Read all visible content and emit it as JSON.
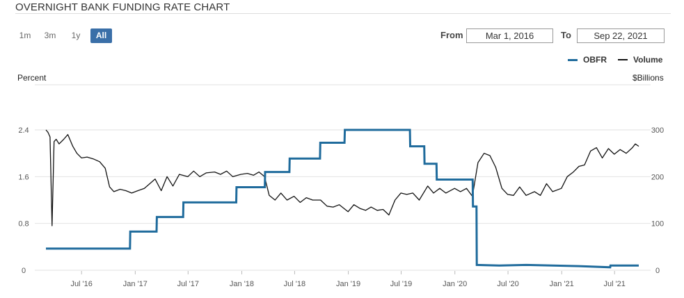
{
  "page": {
    "title": "OVERNIGHT BANK FUNDING RATE CHART",
    "range_buttons": [
      {
        "label": "1m",
        "active": false
      },
      {
        "label": "3m",
        "active": false
      },
      {
        "label": "1y",
        "active": false
      },
      {
        "label": "All",
        "active": true
      }
    ],
    "from_label": "From",
    "from_value": "Mar 1, 2016",
    "to_label": "To",
    "to_value": "Sep 22, 2021",
    "colors": {
      "obfr": "#1f6b9c",
      "volume": "#111111",
      "accent": "#3a6fa8",
      "grid": "#e2e2e2"
    }
  },
  "chart_data": {
    "type": "line",
    "left_axis_label": "Percent",
    "right_axis_label": "$Billions",
    "x_range": [
      "2016-03-01",
      "2021-09-22"
    ],
    "x_ticks": [
      "Jul '16",
      "Jan '17",
      "Jul '17",
      "Jan '18",
      "Jul '18",
      "Jan '19",
      "Jul '19",
      "Jan '20",
      "Jul '20",
      "Jan '21",
      "Jul '21"
    ],
    "y_left": {
      "min": 0,
      "max": 2.4,
      "ticks": [
        "0",
        "0.8",
        "1.6",
        "2.4"
      ]
    },
    "y_right": {
      "min": 0,
      "max": 300,
      "ticks": [
        "0",
        "100",
        "200",
        "300"
      ]
    },
    "grid": true,
    "legend_position": "top-right",
    "series": [
      {
        "name": "OBFR",
        "axis": "left",
        "color": "#1f6b9c",
        "points": [
          [
            "2016-03-01",
            0.37
          ],
          [
            "2016-12-14",
            0.37
          ],
          [
            "2016-12-15",
            0.66
          ],
          [
            "2017-03-15",
            0.66
          ],
          [
            "2017-03-16",
            0.91
          ],
          [
            "2017-06-14",
            0.91
          ],
          [
            "2017-06-15",
            1.16
          ],
          [
            "2017-12-13",
            1.16
          ],
          [
            "2017-12-14",
            1.42
          ],
          [
            "2018-03-21",
            1.42
          ],
          [
            "2018-03-22",
            1.68
          ],
          [
            "2018-06-13",
            1.68
          ],
          [
            "2018-06-14",
            1.91
          ],
          [
            "2018-09-26",
            1.91
          ],
          [
            "2018-09-27",
            2.18
          ],
          [
            "2018-12-19",
            2.18
          ],
          [
            "2018-12-20",
            2.4
          ],
          [
            "2019-07-31",
            2.4
          ],
          [
            "2019-08-01",
            2.12
          ],
          [
            "2019-09-18",
            2.12
          ],
          [
            "2019-09-19",
            1.82
          ],
          [
            "2019-10-30",
            1.82
          ],
          [
            "2019-10-31",
            1.55
          ],
          [
            "2020-03-02",
            1.55
          ],
          [
            "2020-03-03",
            1.09
          ],
          [
            "2020-03-15",
            1.09
          ],
          [
            "2020-03-16",
            0.09
          ],
          [
            "2020-06-01",
            0.08
          ],
          [
            "2020-09-01",
            0.09
          ],
          [
            "2021-03-01",
            0.07
          ],
          [
            "2021-06-16",
            0.05
          ],
          [
            "2021-06-17",
            0.08
          ],
          [
            "2021-09-22",
            0.08
          ]
        ]
      },
      {
        "name": "Volume",
        "axis": "right",
        "color": "#111111",
        "points": [
          [
            "2016-03-01",
            300
          ],
          [
            "2016-03-08",
            295
          ],
          [
            "2016-03-15",
            285
          ],
          [
            "2016-03-22",
            95
          ],
          [
            "2016-03-29",
            275
          ],
          [
            "2016-04-05",
            280
          ],
          [
            "2016-04-15",
            270
          ],
          [
            "2016-05-01",
            280
          ],
          [
            "2016-05-15",
            290
          ],
          [
            "2016-06-01",
            265
          ],
          [
            "2016-06-15",
            250
          ],
          [
            "2016-07-01",
            240
          ],
          [
            "2016-07-20",
            242
          ],
          [
            "2016-08-10",
            238
          ],
          [
            "2016-09-01",
            232
          ],
          [
            "2016-09-20",
            218
          ],
          [
            "2016-10-05",
            178
          ],
          [
            "2016-10-20",
            168
          ],
          [
            "2016-11-10",
            173
          ],
          [
            "2016-11-30",
            170
          ],
          [
            "2016-12-20",
            165
          ],
          [
            "2017-01-10",
            170
          ],
          [
            "2017-02-01",
            175
          ],
          [
            "2017-02-20",
            185
          ],
          [
            "2017-03-10",
            195
          ],
          [
            "2017-03-31",
            170
          ],
          [
            "2017-04-20",
            200
          ],
          [
            "2017-05-10",
            180
          ],
          [
            "2017-06-01",
            205
          ],
          [
            "2017-06-30",
            200
          ],
          [
            "2017-07-20",
            212
          ],
          [
            "2017-08-10",
            200
          ],
          [
            "2017-09-01",
            208
          ],
          [
            "2017-09-30",
            210
          ],
          [
            "2017-10-20",
            205
          ],
          [
            "2017-11-10",
            212
          ],
          [
            "2017-12-01",
            200
          ],
          [
            "2017-12-29",
            205
          ],
          [
            "2018-01-20",
            207
          ],
          [
            "2018-02-10",
            203
          ],
          [
            "2018-03-01",
            210
          ],
          [
            "2018-03-20",
            200
          ],
          [
            "2018-04-05",
            160
          ],
          [
            "2018-04-25",
            150
          ],
          [
            "2018-05-15",
            165
          ],
          [
            "2018-06-05",
            150
          ],
          [
            "2018-06-29",
            158
          ],
          [
            "2018-07-20",
            145
          ],
          [
            "2018-08-10",
            155
          ],
          [
            "2018-09-01",
            150
          ],
          [
            "2018-09-28",
            150
          ],
          [
            "2018-10-20",
            137
          ],
          [
            "2018-11-10",
            135
          ],
          [
            "2018-12-01",
            140
          ],
          [
            "2018-12-31",
            125
          ],
          [
            "2019-01-20",
            140
          ],
          [
            "2019-02-10",
            132
          ],
          [
            "2019-03-01",
            128
          ],
          [
            "2019-03-20",
            135
          ],
          [
            "2019-04-10",
            128
          ],
          [
            "2019-04-30",
            130
          ],
          [
            "2019-05-20",
            118
          ],
          [
            "2019-06-10",
            150
          ],
          [
            "2019-06-30",
            165
          ],
          [
            "2019-07-20",
            162
          ],
          [
            "2019-08-10",
            165
          ],
          [
            "2019-09-01",
            150
          ],
          [
            "2019-09-30",
            180
          ],
          [
            "2019-10-20",
            165
          ],
          [
            "2019-11-10",
            175
          ],
          [
            "2019-12-01",
            165
          ],
          [
            "2019-12-31",
            175
          ],
          [
            "2020-01-20",
            168
          ],
          [
            "2020-02-10",
            175
          ],
          [
            "2020-03-01",
            158
          ],
          [
            "2020-03-20",
            230
          ],
          [
            "2020-04-10",
            250
          ],
          [
            "2020-04-30",
            245
          ],
          [
            "2020-05-20",
            220
          ],
          [
            "2020-06-10",
            175
          ],
          [
            "2020-06-30",
            162
          ],
          [
            "2020-07-20",
            160
          ],
          [
            "2020-08-10",
            178
          ],
          [
            "2020-09-01",
            160
          ],
          [
            "2020-09-30",
            168
          ],
          [
            "2020-10-20",
            160
          ],
          [
            "2020-11-10",
            185
          ],
          [
            "2020-12-01",
            168
          ],
          [
            "2020-12-31",
            175
          ],
          [
            "2021-01-20",
            200
          ],
          [
            "2021-02-10",
            210
          ],
          [
            "2021-03-01",
            222
          ],
          [
            "2021-03-20",
            225
          ],
          [
            "2021-04-10",
            255
          ],
          [
            "2021-04-30",
            262
          ],
          [
            "2021-05-20",
            240
          ],
          [
            "2021-06-10",
            260
          ],
          [
            "2021-06-30",
            248
          ],
          [
            "2021-07-20",
            258
          ],
          [
            "2021-08-10",
            250
          ],
          [
            "2021-08-31",
            262
          ],
          [
            "2021-09-10",
            270
          ],
          [
            "2021-09-22",
            265
          ]
        ]
      }
    ]
  }
}
